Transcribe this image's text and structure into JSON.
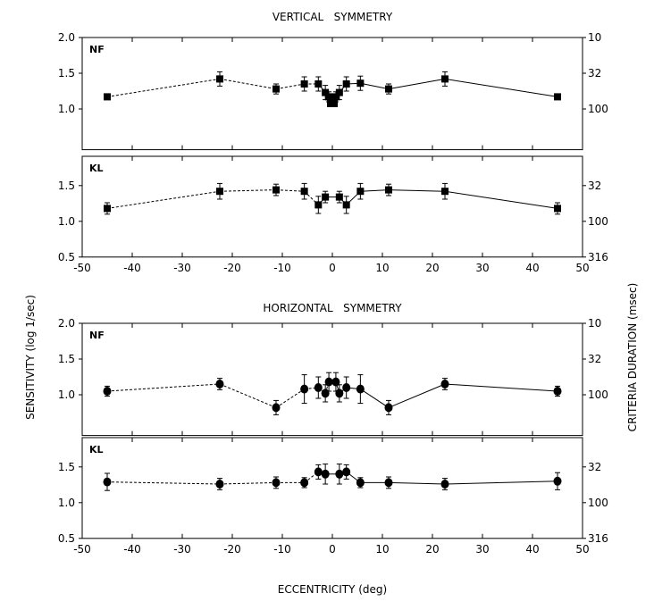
{
  "chart_data": {
    "type": "scatter",
    "titles": [
      "VERTICAL   SYMMETRY",
      "HORIZONTAL   SYMMETRY"
    ],
    "xlabel": "ECCENTRICITY (deg)",
    "ylabel": "SENSITIVITY (log 1/sec)",
    "ylabel_right": "CRITERIA DURATION (msec)",
    "xlim": [
      -50,
      50
    ],
    "xticks": [
      -50,
      -40,
      -30,
      -20,
      -10,
      0,
      10,
      20,
      30,
      40,
      50
    ],
    "line_style": {
      "negative_side": "dashed",
      "positive_side": "solid"
    },
    "panels": [
      {
        "group": 0,
        "label": "NF",
        "marker": "square",
        "ylim": [
          0.43,
          2.0
        ],
        "yticks": [
          "2.0",
          "1.5",
          "1.0"
        ],
        "yticks_values": [
          2.0,
          1.5,
          1.0
        ],
        "right_ticks": [
          "10",
          "32",
          "100"
        ],
        "x": [
          -45,
          -22.5,
          -11.25,
          -5.6,
          -2.8,
          -1.4,
          -0.7,
          0,
          0.7,
          1.4,
          2.8,
          5.6,
          11.25,
          22.5,
          45
        ],
        "y": [
          1.17,
          1.42,
          1.28,
          1.35,
          1.35,
          1.23,
          1.17,
          1.1,
          1.17,
          1.23,
          1.35,
          1.36,
          1.28,
          1.42,
          1.17
        ],
        "err": [
          0.03,
          0.1,
          0.07,
          0.1,
          0.1,
          0.1,
          0.07,
          0.05,
          0.07,
          0.1,
          0.1,
          0.1,
          0.07,
          0.1,
          0.03
        ]
      },
      {
        "group": 0,
        "label": "KL",
        "marker": "square",
        "ylim": [
          0.5,
          1.91
        ],
        "yticks": [
          "1.5",
          "1.0",
          "0.5"
        ],
        "yticks_values": [
          1.5,
          1.0,
          0.5
        ],
        "right_ticks": [
          "32",
          "100",
          "316"
        ],
        "x": [
          -45,
          -22.5,
          -11.25,
          -5.6,
          -2.8,
          -1.4,
          1.4,
          2.8,
          5.6,
          11.25,
          22.5,
          45
        ],
        "y": [
          1.18,
          1.42,
          1.44,
          1.42,
          1.23,
          1.34,
          1.34,
          1.23,
          1.42,
          1.44,
          1.42,
          1.18
        ],
        "err": [
          0.08,
          0.11,
          0.08,
          0.11,
          0.12,
          0.08,
          0.08,
          0.12,
          0.11,
          0.08,
          0.11,
          0.08
        ]
      },
      {
        "group": 1,
        "label": "NF",
        "marker": "circle",
        "ylim": [
          0.43,
          2.0
        ],
        "yticks": [
          "2.0",
          "1.5",
          "1.0"
        ],
        "yticks_values": [
          2.0,
          1.5,
          1.0
        ],
        "right_ticks": [
          "10",
          "32",
          "100"
        ],
        "x": [
          -45,
          -22.5,
          -11.25,
          -5.6,
          -2.8,
          -1.4,
          -0.7,
          0.7,
          1.4,
          2.8,
          5.6,
          11.25,
          22.5,
          45
        ],
        "y": [
          1.05,
          1.15,
          0.82,
          1.08,
          1.1,
          1.02,
          1.18,
          1.18,
          1.02,
          1.1,
          1.08,
          0.82,
          1.15,
          1.05
        ],
        "err": [
          0.07,
          0.08,
          0.1,
          0.2,
          0.15,
          0.12,
          0.13,
          0.13,
          0.12,
          0.15,
          0.2,
          0.1,
          0.08,
          0.07
        ]
      },
      {
        "group": 1,
        "label": "KL",
        "marker": "circle",
        "ylim": [
          0.5,
          1.91
        ],
        "yticks": [
          "1.5",
          "1.0",
          "0.5"
        ],
        "yticks_values": [
          1.5,
          1.0,
          0.5
        ],
        "right_ticks": [
          "32",
          "100",
          "316"
        ],
        "x": [
          -45,
          -22.5,
          -11.25,
          -5.6,
          -2.8,
          -1.4,
          1.4,
          2.8,
          5.6,
          11.25,
          22.5,
          45
        ],
        "y": [
          1.29,
          1.26,
          1.28,
          1.28,
          1.43,
          1.4,
          1.4,
          1.43,
          1.28,
          1.28,
          1.26,
          1.3
        ],
        "err": [
          0.12,
          0.08,
          0.08,
          0.07,
          0.1,
          0.14,
          0.14,
          0.1,
          0.07,
          0.08,
          0.08,
          0.12
        ]
      }
    ]
  }
}
